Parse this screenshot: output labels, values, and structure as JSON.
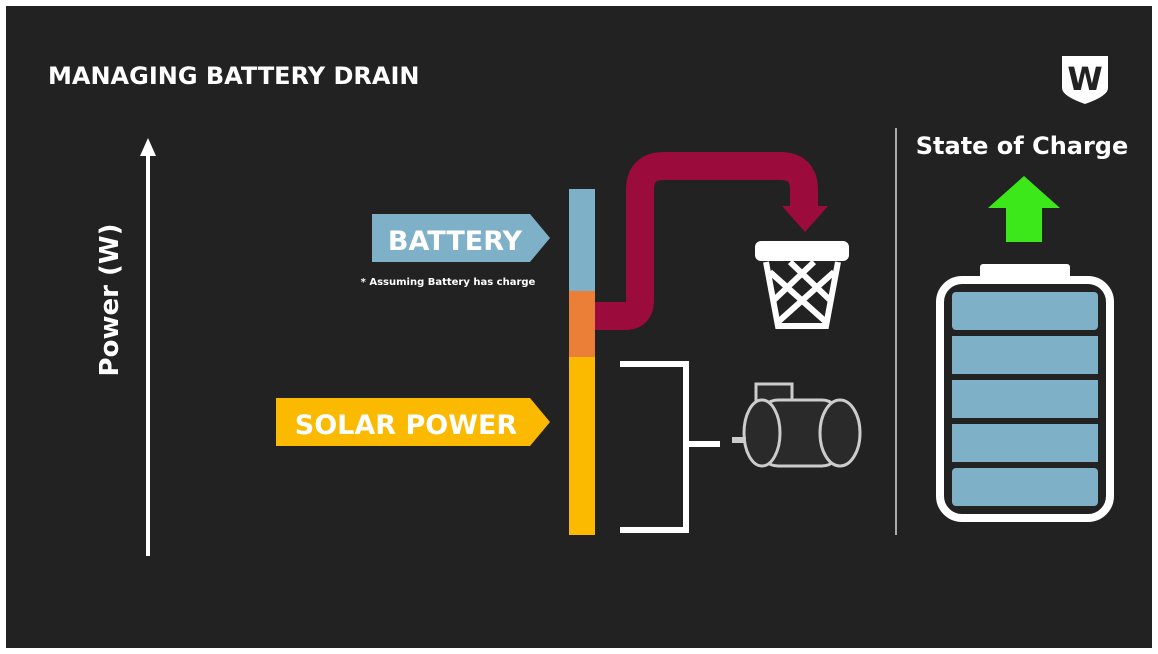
{
  "title": "MANAGING BATTERY DRAIN",
  "logo": "W",
  "y_axis_label": "Power (W)",
  "battery_label": "BATTERY",
  "battery_note": "* Assuming Battery has charge",
  "solar_label": "SOLAR POWER",
  "state_label": "State of Charge"
}
